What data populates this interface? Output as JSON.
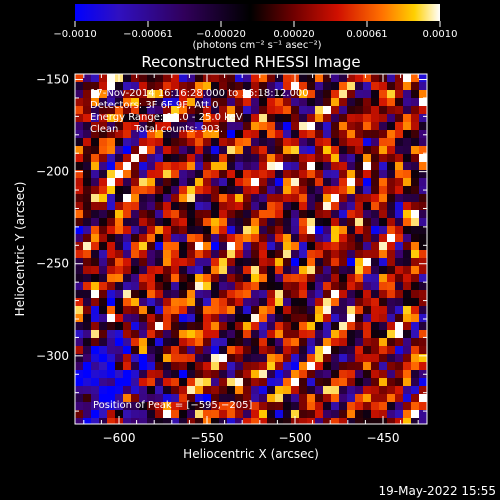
{
  "chart_data": {
    "type": "heatmap",
    "title": "Reconstructed RHESSI Image",
    "xlabel": "Heliocentric X (arcsec)",
    "ylabel": "Heliocentric Y (arcsec)",
    "xlim": [
      -625,
      -425
    ],
    "ylim": [
      -337,
      -147
    ],
    "x_ticks": [
      -600,
      -550,
      -500,
      -450
    ],
    "y_ticks": [
      -150,
      -200,
      -250,
      -300
    ],
    "x_tick_labels": [
      "−600",
      "−550",
      "−500",
      "−450"
    ],
    "y_tick_labels": [
      "−150",
      "−200",
      "−250",
      "−300"
    ],
    "colorbar": {
      "range": [
        -0.001,
        0.001
      ],
      "tick_labels": [
        "−0.0010",
        "−0.00061",
        "−0.00020",
        "0.00020",
        "0.00061",
        "0.0010"
      ],
      "units": "(photons cm⁻² s⁻¹ asec⁻²)",
      "colors": [
        "#0000ff",
        "#4000b0",
        "#300060",
        "#000000",
        "#600000",
        "#c00000",
        "#ff3000",
        "#ff9000",
        "#ffd000",
        "#ffffff"
      ]
    },
    "annotations": [
      "17-Nov-2014 16:16:28.000 to 16:18:12.000",
      "Detectors: 3F 6F 9F, Att 0",
      "Energy Range: 12.0 - 25.0 keV",
      "Clean     Total counts: 903."
    ],
    "peak_label": "Position of Peak = [−595,−205]",
    "peak_xy": [
      -595,
      -205
    ]
  },
  "footer_date": "19-May-2022 15:55"
}
